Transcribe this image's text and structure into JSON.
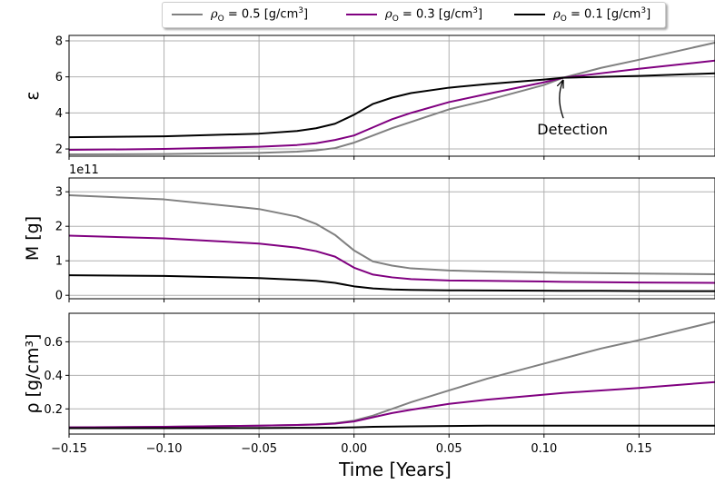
{
  "chart_data": {
    "type": "line",
    "xlabel": "Time [Years]",
    "xlim": [
      -0.15,
      0.19
    ],
    "x_ticks": [
      -0.15,
      -0.1,
      -0.05,
      0.0,
      0.05,
      0.1,
      0.15
    ],
    "x_tick_labels": [
      "−0.15",
      "−0.10",
      "−0.05",
      "0.00",
      "0.05",
      "0.10",
      "0.15"
    ],
    "grid": true,
    "legend": {
      "placement": "top-center-outside",
      "entries": [
        {
          "symbol": "ρ",
          "sub": "O",
          "value_text": " = 0.5 [g/cm",
          "sup": "3",
          "close": "]",
          "color": "#808080"
        },
        {
          "symbol": "ρ",
          "sub": "O",
          "value_text": " = 0.3 [g/cm",
          "sup": "3",
          "close": "]",
          "color": "#800080"
        },
        {
          "symbol": "ρ",
          "sub": "O",
          "value_text": " = 0.1 [g/cm",
          "sup": "3",
          "close": "]",
          "color": "#000000"
        }
      ]
    },
    "panels": [
      {
        "ylabel": "ε",
        "ylim": [
          1.6,
          8.3
        ],
        "yticks": [
          2,
          4,
          6,
          8
        ],
        "ytick_labels": [
          "2",
          "4",
          "6",
          "8"
        ],
        "offset_text": "",
        "annotation": {
          "text": "Detection",
          "x": 0.11,
          "y": 5.95,
          "text_x": 0.115,
          "text_y": 2.8
        },
        "x": [
          -0.15,
          -0.1,
          -0.05,
          -0.03,
          -0.02,
          -0.01,
          0.0,
          0.01,
          0.02,
          0.03,
          0.05,
          0.07,
          0.1,
          0.11,
          0.13,
          0.15,
          0.19
        ],
        "series": [
          {
            "color": "#808080",
            "values": [
              1.7,
              1.72,
              1.78,
              1.85,
              1.92,
              2.05,
              2.35,
              2.75,
              3.15,
              3.5,
              4.2,
              4.7,
              5.55,
              5.95,
              6.5,
              6.95,
              7.9
            ]
          },
          {
            "color": "#800080",
            "values": [
              1.95,
              2.0,
              2.12,
              2.22,
              2.32,
              2.5,
              2.75,
              3.2,
              3.65,
              4.0,
              4.6,
              5.05,
              5.7,
              5.95,
              6.2,
              6.45,
              6.9
            ]
          },
          {
            "color": "#000000",
            "values": [
              2.65,
              2.7,
              2.85,
              3.0,
              3.15,
              3.4,
              3.9,
              4.5,
              4.85,
              5.1,
              5.4,
              5.6,
              5.85,
              5.95,
              6.0,
              6.05,
              6.2
            ]
          }
        ]
      },
      {
        "ylabel": "M  [g]",
        "ylim": [
          -10000000000.0,
          340000000000.0
        ],
        "yticks": [
          0,
          100000000000.0,
          200000000000.0,
          300000000000.0
        ],
        "ytick_labels": [
          "0",
          "1",
          "2",
          "3"
        ],
        "offset_text": "1e11",
        "x": [
          -0.15,
          -0.1,
          -0.05,
          -0.03,
          -0.02,
          -0.01,
          0.0,
          0.01,
          0.02,
          0.03,
          0.05,
          0.07,
          0.1,
          0.11,
          0.13,
          0.15,
          0.19
        ],
        "series": [
          {
            "color": "#808080",
            "values": [
              290000000000.0,
              278000000000.0,
              250000000000.0,
              228000000000.0,
              207000000000.0,
              175000000000.0,
              130000000000.0,
              98000000000.0,
              86000000000.0,
              78000000000.0,
              72000000000.0,
              69000000000.0,
              66000000000.0,
              65000000000.0,
              64000000000.0,
              63000000000.0,
              61000000000.0
            ]
          },
          {
            "color": "#800080",
            "values": [
              173000000000.0,
              165000000000.0,
              150000000000.0,
              138000000000.0,
              128000000000.0,
              112000000000.0,
              80000000000.0,
              60000000000.0,
              52000000000.0,
              47000000000.0,
              43000000000.0,
              42000000000.0,
              40000000000.0,
              39000000000.0,
              38000000000.0,
              37000000000.0,
              36000000000.0
            ]
          },
          {
            "color": "#000000",
            "values": [
              58000000000.0,
              56000000000.0,
              50000000000.0,
              45000000000.0,
              42000000000.0,
              36000000000.0,
              26000000000.0,
              20000000000.0,
              17000000000.0,
              15500000000.0,
              14500000000.0,
              14000000000.0,
              13500000000.0,
              13000000000.0,
              13000000000.0,
              12500000000.0,
              12000000000.0
            ]
          }
        ]
      },
      {
        "ylabel": "ρ  [g/cm³]",
        "ylim": [
          0.05,
          0.77
        ],
        "yticks": [
          0.2,
          0.4,
          0.6
        ],
        "ytick_labels": [
          "0.2",
          "0.4",
          "0.6"
        ],
        "offset_text": "",
        "x": [
          -0.15,
          -0.1,
          -0.05,
          -0.03,
          -0.02,
          -0.01,
          0.0,
          0.01,
          0.02,
          0.03,
          0.05,
          0.07,
          0.1,
          0.11,
          0.13,
          0.15,
          0.19
        ],
        "series": [
          {
            "color": "#808080",
            "values": [
              0.09,
              0.093,
              0.1,
              0.104,
              0.108,
              0.115,
              0.13,
              0.16,
              0.2,
              0.24,
              0.31,
              0.38,
              0.47,
              0.5,
              0.56,
              0.61,
              0.72
            ]
          },
          {
            "color": "#800080",
            "values": [
              0.09,
              0.093,
              0.1,
              0.104,
              0.107,
              0.112,
              0.125,
              0.15,
              0.175,
              0.195,
              0.23,
              0.255,
              0.285,
              0.295,
              0.31,
              0.325,
              0.36
            ]
          },
          {
            "color": "#000000",
            "values": [
              0.085,
              0.085,
              0.086,
              0.087,
              0.087,
              0.088,
              0.09,
              0.093,
              0.095,
              0.096,
              0.098,
              0.1,
              0.1,
              0.1,
              0.1,
              0.1,
              0.1
            ]
          }
        ]
      }
    ]
  }
}
